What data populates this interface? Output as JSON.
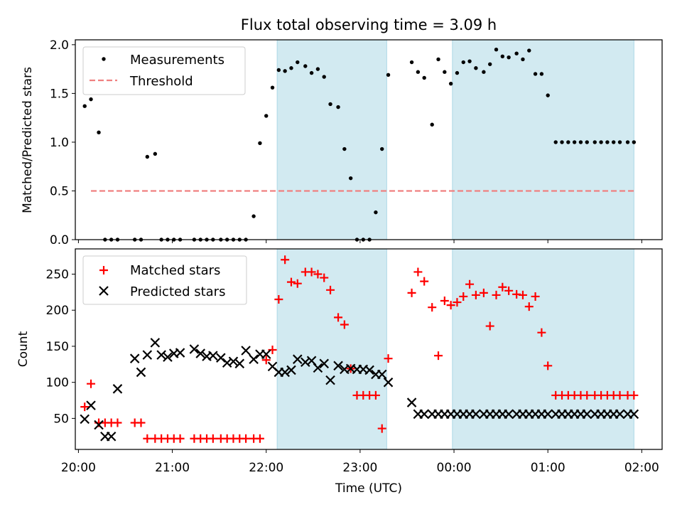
{
  "chart_data": {
    "type": "scatter",
    "title": "Flux total observing time = 3.09 h",
    "xlabel": "Time (UTC)",
    "x_ticks": [
      "20:00",
      "21:00",
      "22:00",
      "23:00",
      "00:00",
      "01:00",
      "02:00"
    ],
    "xlim": [
      "19:58",
      "02:13"
    ],
    "shaded_intervals": [
      [
        "22:07",
        "23:17"
      ],
      [
        "23:59",
        "01:55"
      ]
    ],
    "shade_color": "#add8e6",
    "panels": [
      {
        "ylabel": "Matched/Predicted stars",
        "ylim": [
          0,
          2.05
        ],
        "y_ticks": [
          "0.0",
          "0.5",
          "1.0",
          "1.5",
          "2.0"
        ],
        "legend": {
          "placement": "top-left",
          "entries": [
            "Measurements",
            "Threshold"
          ]
        },
        "series": [
          {
            "name": "Measurements",
            "marker": "dot",
            "color": "#000000",
            "x": [
              "20:04",
              "20:08",
              "20:13",
              "20:17",
              "20:21",
              "20:25",
              "20:36",
              "20:40",
              "20:44",
              "20:49",
              "20:53",
              "20:57",
              "21:01",
              "21:05",
              "21:14",
              "21:18",
              "21:22",
              "21:26",
              "21:31",
              "21:35",
              "21:39",
              "21:43",
              "21:47",
              "21:52",
              "21:56",
              "22:00",
              "22:04",
              "22:08",
              "22:12",
              "22:16",
              "22:20",
              "22:25",
              "22:29",
              "22:33",
              "22:37",
              "22:41",
              "22:46",
              "22:50",
              "22:54",
              "22:58",
              "23:02",
              "23:06",
              "23:10",
              "23:14",
              "23:18",
              "23:33",
              "23:37",
              "23:41",
              "23:46",
              "23:50",
              "23:54",
              "23:58",
              "00:02",
              "00:06",
              "00:10",
              "00:14",
              "00:19",
              "00:23",
              "00:27",
              "00:31",
              "00:35",
              "00:40",
              "00:44",
              "00:48",
              "00:52",
              "00:56",
              "01:00",
              "01:05",
              "01:09",
              "01:13",
              "01:17",
              "01:21",
              "01:25",
              "01:30",
              "01:34",
              "01:38",
              "01:42",
              "01:46",
              "01:51",
              "01:55"
            ],
            "y": [
              1.37,
              1.44,
              1.1,
              0,
              0,
              0,
              0,
              0,
              0.85,
              0.88,
              0,
              0,
              0,
              0,
              0,
              0,
              0,
              0,
              0,
              0,
              0,
              0,
              0,
              0.24,
              0.99,
              1.27,
              1.56,
              1.74,
              1.73,
              1.76,
              1.82,
              1.78,
              1.71,
              1.75,
              1.67,
              1.39,
              1.36,
              0.93,
              0.63,
              0,
              0,
              0,
              0.28,
              0.93,
              1.69,
              1.82,
              1.72,
              1.66,
              1.18,
              1.85,
              1.72,
              1.6,
              1.71,
              1.82,
              1.83,
              1.76,
              1.72,
              1.8,
              1.95,
              1.88,
              1.87,
              1.91,
              1.85,
              1.94,
              1.7,
              1.7,
              1.48,
              1.0,
              1.0,
              1.0,
              1.0,
              1.0,
              1.0,
              1.0,
              1.0,
              1.0,
              1.0,
              1.0,
              1.0,
              1.0
            ]
          },
          {
            "name": "Threshold",
            "line_style": "dashed",
            "color": "#f08080",
            "x": [
              "20:08",
              "01:55"
            ],
            "y": [
              0.5,
              0.5
            ]
          }
        ]
      },
      {
        "ylabel": "Count",
        "ylim": [
          7,
          285
        ],
        "y_ticks": [
          "50",
          "100",
          "150",
          "200",
          "250"
        ],
        "legend": {
          "placement": "top-left",
          "entries": [
            "Matched stars",
            "Predicted stars"
          ]
        },
        "series": [
          {
            "name": "Matched stars",
            "marker": "plus",
            "color": "#ff0000",
            "x": [
              "20:04",
              "20:08",
              "20:13",
              "20:17",
              "20:21",
              "20:25",
              "20:36",
              "20:40",
              "20:44",
              "20:49",
              "20:53",
              "20:57",
              "21:01",
              "21:05",
              "21:14",
              "21:18",
              "21:22",
              "21:26",
              "21:31",
              "21:35",
              "21:39",
              "21:43",
              "21:47",
              "21:52",
              "21:56",
              "22:00",
              "22:04",
              "22:08",
              "22:12",
              "22:16",
              "22:20",
              "22:25",
              "22:29",
              "22:33",
              "22:37",
              "22:41",
              "22:46",
              "22:50",
              "22:54",
              "22:58",
              "23:02",
              "23:06",
              "23:10",
              "23:14",
              "23:18",
              "23:33",
              "23:37",
              "23:41",
              "23:46",
              "23:50",
              "23:54",
              "23:58",
              "00:02",
              "00:06",
              "00:10",
              "00:14",
              "00:19",
              "00:23",
              "00:27",
              "00:31",
              "00:35",
              "00:40",
              "00:44",
              "00:48",
              "00:52",
              "00:56",
              "01:00",
              "01:05",
              "01:09",
              "01:13",
              "01:17",
              "01:21",
              "01:25",
              "01:30",
              "01:34",
              "01:38",
              "01:42",
              "01:46",
              "01:51",
              "01:55"
            ],
            "y": [
              66,
              98,
              44,
              44,
              44,
              44,
              44,
              44,
              22,
              22,
              22,
              22,
              22,
              22,
              22,
              22,
              22,
              22,
              22,
              22,
              22,
              22,
              22,
              22,
              22,
              131,
              145,
              215,
              270,
              239,
              237,
              253,
              253,
              250,
              245,
              228,
              190,
              180,
              119,
              82,
              82,
              82,
              82,
              36,
              133,
              224,
              253,
              240,
              204,
              137,
              213,
              207,
              211,
              219,
              236,
              221,
              224,
              178,
              221,
              232,
              227,
              222,
              221,
              205,
              219,
              169,
              123,
              82,
              82,
              82,
              82,
              82,
              82,
              82,
              82,
              82,
              82,
              82,
              82,
              82
            ]
          },
          {
            "name": "Predicted stars",
            "marker": "x",
            "color": "#000000",
            "x": [
              "20:04",
              "20:08",
              "20:13",
              "20:17",
              "20:21",
              "20:25",
              "20:36",
              "20:40",
              "20:44",
              "20:49",
              "20:53",
              "20:57",
              "21:01",
              "21:05",
              "21:14",
              "21:18",
              "21:22",
              "21:26",
              "21:31",
              "21:35",
              "21:39",
              "21:43",
              "21:47",
              "21:52",
              "21:56",
              "22:00",
              "22:04",
              "22:08",
              "22:12",
              "22:16",
              "22:20",
              "22:25",
              "22:29",
              "22:33",
              "22:37",
              "22:41",
              "22:46",
              "22:50",
              "22:54",
              "22:58",
              "23:02",
              "23:06",
              "23:10",
              "23:14",
              "23:18",
              "23:33",
              "23:37",
              "23:41",
              "23:46",
              "23:50",
              "23:54",
              "23:58",
              "00:02",
              "00:06",
              "00:10",
              "00:14",
              "00:19",
              "00:23",
              "00:27",
              "00:31",
              "00:35",
              "00:40",
              "00:44",
              "00:48",
              "00:52",
              "00:56",
              "01:00",
              "01:05",
              "01:09",
              "01:13",
              "01:17",
              "01:21",
              "01:25",
              "01:30",
              "01:34",
              "01:38",
              "01:42",
              "01:46",
              "01:51",
              "01:55"
            ],
            "y": [
              49,
              68,
              41,
              25,
              25,
              91,
              133,
              114,
              138,
              155,
              138,
              135,
              140,
              141,
              146,
              140,
              136,
              137,
              134,
              127,
              129,
              126,
              144,
              132,
              139,
              139,
              122,
              114,
              114,
              117,
              132,
              128,
              130,
              120,
              126,
              103,
              123,
              118,
              119,
              118,
              118,
              117,
              111,
              111,
              100,
              72,
              56,
              56,
              56,
              56,
              56,
              56,
              56,
              56,
              56,
              56,
              56,
              56,
              56,
              56,
              56,
              56,
              56,
              56,
              56,
              56,
              56,
              56,
              56,
              56,
              56,
              56,
              56,
              56,
              56,
              56,
              56,
              56,
              56,
              56
            ]
          }
        ]
      }
    ]
  }
}
